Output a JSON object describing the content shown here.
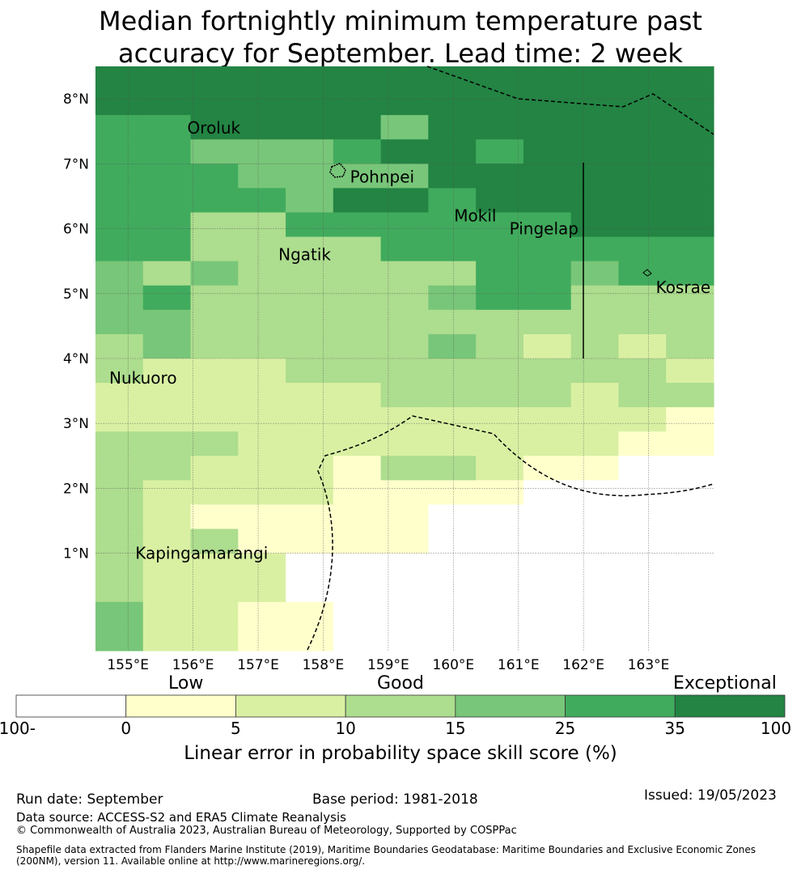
{
  "title": {
    "line1": "Median fortnightly minimum temperature past",
    "line2": "accuracy for September. Lead time: 2 week"
  },
  "map": {
    "lon_min": 154.5,
    "lon_max": 164.0,
    "lat_min": -0.5,
    "lat_max": 8.5,
    "lon_ticks": [
      {
        "value": 155,
        "label": "155°E"
      },
      {
        "value": 156,
        "label": "156°E"
      },
      {
        "value": 157,
        "label": "157°E"
      },
      {
        "value": 158,
        "label": "158°E"
      },
      {
        "value": 159,
        "label": "159°E"
      },
      {
        "value": 160,
        "label": "160°E"
      },
      {
        "value": 161,
        "label": "161°E"
      },
      {
        "value": 162,
        "label": "162°E"
      },
      {
        "value": 163,
        "label": "163°E"
      }
    ],
    "lat_ticks": [
      {
        "value": 1,
        "label": "1°N"
      },
      {
        "value": 2,
        "label": "2°N"
      },
      {
        "value": 3,
        "label": "3°N"
      },
      {
        "value": 4,
        "label": "4°N"
      },
      {
        "value": 5,
        "label": "5°N"
      },
      {
        "value": 6,
        "label": "6°N"
      },
      {
        "value": 7,
        "label": "7°N"
      },
      {
        "value": 8,
        "label": "8°N"
      }
    ],
    "places": [
      {
        "name": "Oroluk",
        "lon": 155.8,
        "lat": 7.55
      },
      {
        "name": "Pohnpei",
        "lon": 158.3,
        "lat": 6.8
      },
      {
        "name": "Mokil",
        "lon": 159.9,
        "lat": 6.2
      },
      {
        "name": "Pingelap",
        "lon": 160.75,
        "lat": 6.0
      },
      {
        "name": "Ngatik",
        "lon": 157.2,
        "lat": 5.6
      },
      {
        "name": "Kosrae",
        "lon": 163.0,
        "lat": 5.1
      },
      {
        "name": "Nukuoro",
        "lon": 154.6,
        "lat": 3.7
      },
      {
        "name": "Kapingamarangi",
        "lon": 155.0,
        "lat": 1.0
      }
    ]
  },
  "colorbar": {
    "category_labels": {
      "low": "Low",
      "good": "Good",
      "exceptional": "Exceptional"
    },
    "tick_labels": [
      "-100",
      "0",
      "5",
      "10",
      "15",
      "25",
      "35",
      "100"
    ],
    "colors": [
      "#ffffff",
      "#ffffcc",
      "#d9f0a3",
      "#addd8e",
      "#78c679",
      "#41ab5d",
      "#238443"
    ],
    "title": "Linear error in probability space skill score (%)"
  },
  "grid_data": {
    "description_rows_top_to_bottom": [
      "6666666666666",
      "6666666666666",
      "5566664666666",
      "5544456656666",
      "5554444666666",
      "5555466566666",
      "5533555555666",
      "5533335555555",
      "4343333355455",
      "4533333455333",
      "4433333333333",
      "3433333432323",
      "3222333333332",
      "2222223333233",
      "2222222222221",
      "3332222222211",
      "3322213321100",
      "3222211110000",
      "3211111000000",
      "3231111000000",
      "3222000000000",
      "3222000000000",
      "4221100000000",
      "4221100000000"
    ]
  },
  "footer": {
    "run_date": "Run date: September",
    "base_period": "Base period: 1981-2018",
    "issued": "Issued: 19/05/2023",
    "data_source": "Data source: ACCESS-S2 and ERA5 Climate Reanalysis",
    "copyright": "© Commonwealth of Australia 2023, Australian Bureau of Meteorology, Supported by COSPPac",
    "shapefile_line1": "Shapefile data extracted from Flanders Marine Institute (2019), Maritime Boundaries Geodatabase: Maritime Boundaries and Exclusive Economic Zones",
    "shapefile_line2": "(200NM), version 11. Available online at http://www.marineregions.org/."
  }
}
